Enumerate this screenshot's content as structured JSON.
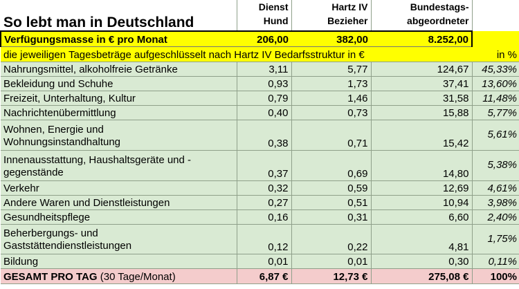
{
  "title": "So lebt man in Deutschland",
  "columns": [
    {
      "line1": "Dienst",
      "line2": "Hund"
    },
    {
      "line1": "Hartz IV",
      "line2": "Bezieher"
    },
    {
      "line1": "Bundestags-",
      "line2": "abgeordneter"
    }
  ],
  "verfuegung": {
    "label": "Verfügungsmasse in € pro Monat",
    "values": [
      "206,00",
      "382,00",
      "8.252,00"
    ]
  },
  "subtitle": "die jeweiligen Tagesbeträge aufgeschlüsselt nach Hartz IV Bedarfsstruktur in €",
  "pct_header": "in %",
  "rows": [
    {
      "line1": "Nahrungsmittel, alkoholfreie Getränke",
      "line2": "",
      "v1": "3,11",
      "v2": "5,77",
      "v3": "124,67",
      "pct": "45,33%"
    },
    {
      "line1": "Bekleidung und Schuhe",
      "line2": "",
      "v1": "0,93",
      "v2": "1,73",
      "v3": "37,41",
      "pct": "13,60%"
    },
    {
      "line1": "Freizeit, Unterhaltung, Kultur",
      "line2": "",
      "v1": "0,79",
      "v2": "1,46",
      "v3": "31,58",
      "pct": "11,48%"
    },
    {
      "line1": "Nachrichtenübermittlung",
      "line2": "",
      "v1": "0,40",
      "v2": "0,73",
      "v3": "15,88",
      "pct": "5,77%"
    },
    {
      "line1": "Wohnen, Energie und",
      "line2": "Wohnungsinstandhaltung",
      "v1": "0,38",
      "v2": "0,71",
      "v3": "15,42",
      "pct": "5,61%"
    },
    {
      "line1": "Innenausstattung, Haushaltsgeräte und -",
      "line2": "gegenstände",
      "v1": "0,37",
      "v2": "0,69",
      "v3": "14,80",
      "pct": "5,38%"
    },
    {
      "line1": "Verkehr",
      "line2": "",
      "v1": "0,32",
      "v2": "0,59",
      "v3": "12,69",
      "pct": "4,61%"
    },
    {
      "line1": "Andere Waren und Dienstleistungen",
      "line2": "",
      "v1": "0,27",
      "v2": "0,51",
      "v3": "10,94",
      "pct": "3,98%"
    },
    {
      "line1": "Gesundheitspflege",
      "line2": "",
      "v1": "0,16",
      "v2": "0,31",
      "v3": "6,60",
      "pct": "2,40%"
    },
    {
      "line1": "Beherbergungs- und",
      "line2": "Gaststättendienstleistungen",
      "v1": "0,12",
      "v2": "0,22",
      "v3": "4,81",
      "pct": "1,75%"
    },
    {
      "line1": "Bildung",
      "line2": "",
      "v1": "0,01",
      "v2": "0,01",
      "v3": "0,30",
      "pct": "0,11%"
    }
  ],
  "total": {
    "label_bold": "GESAMT PRO TAG",
    "label_note": "(30 Tage/Monat)",
    "v1": "6,87 €",
    "v2": "12,73 €",
    "v3": "275,08 €",
    "pct": "100%"
  },
  "colors": {
    "row_bg": "#d9ead3",
    "highlight": "#ffff00",
    "total_bg": "#f4cccc"
  }
}
